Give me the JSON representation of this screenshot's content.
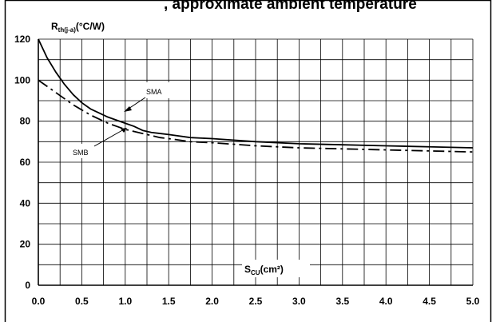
{
  "header_text": ", approximate ambient temperature",
  "chart_data": {
    "type": "line",
    "ylabel": {
      "main": "R",
      "sub": "th(j-a)",
      "unit": "(°C/W)"
    },
    "xlabel": {
      "main": "S",
      "sub": "CU",
      "unit": "(cm²)"
    },
    "xlim": [
      0,
      5
    ],
    "ylim": [
      0,
      120
    ],
    "xticks": [
      "0.0",
      "0.5",
      "1.0",
      "1.5",
      "2.0",
      "2.5",
      "3.0",
      "3.5",
      "4.0",
      "4.5",
      "5.0"
    ],
    "yticks": [
      "0",
      "20",
      "40",
      "60",
      "80",
      "100",
      "120"
    ],
    "grid": true,
    "series": [
      {
        "name": "SMA",
        "style": "solid",
        "color": "#000000",
        "x": [
          0,
          0.1,
          0.2,
          0.3,
          0.4,
          0.5,
          0.6,
          0.7,
          0.8,
          0.9,
          1.0,
          1.1,
          1.2,
          1.3,
          1.4,
          1.5,
          1.75,
          2.0,
          2.5,
          3.0,
          3.5,
          4.0,
          4.5,
          5.0
        ],
        "y": [
          120,
          111,
          104,
          98,
          93,
          89,
          86,
          84,
          82,
          80.5,
          79,
          77.5,
          75.5,
          74.5,
          74,
          73.5,
          72,
          71.5,
          70,
          69,
          68.5,
          68,
          67.5,
          67
        ]
      },
      {
        "name": "SMB",
        "style": "dashdot",
        "color": "#000000",
        "x": [
          0,
          0.1,
          0.2,
          0.3,
          0.4,
          0.5,
          0.6,
          0.7,
          0.8,
          0.9,
          1.0,
          1.1,
          1.2,
          1.3,
          1.4,
          1.5,
          1.75,
          2.0,
          2.5,
          3.0,
          3.5,
          4.0,
          4.5,
          5.0
        ],
        "y": [
          100,
          97,
          94,
          91,
          88,
          85.5,
          83,
          81,
          79,
          77.5,
          76,
          75,
          74,
          73,
          72,
          71.5,
          70,
          69.5,
          68,
          67,
          66.5,
          66,
          65.5,
          65
        ]
      }
    ],
    "annotations": [
      {
        "label": "SMA",
        "series": "SMA"
      },
      {
        "label": "SMB",
        "series": "SMB"
      }
    ]
  }
}
